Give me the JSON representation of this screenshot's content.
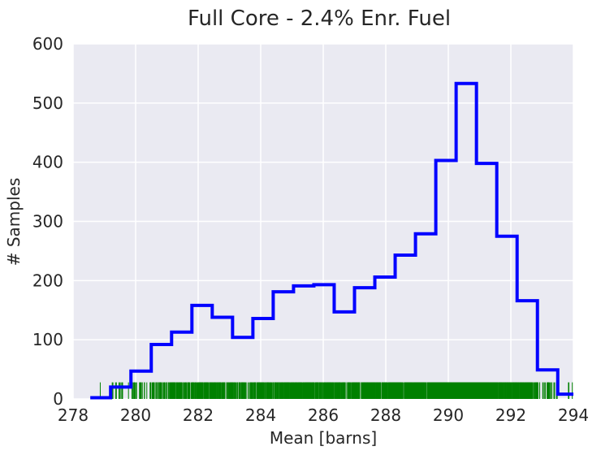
{
  "chart_data": {
    "type": "histogram",
    "title": "Full Core - 2.4% Enr. Fuel",
    "xlabel": "Mean [barns]",
    "ylabel": "# Samples",
    "xlim": [
      278,
      294
    ],
    "ylim": [
      0,
      600
    ],
    "x_ticks": [
      278,
      280,
      282,
      284,
      286,
      288,
      290,
      292,
      294
    ],
    "y_ticks": [
      0,
      100,
      200,
      300,
      400,
      500,
      600
    ],
    "grid": true,
    "background_color": "#eaeaf2",
    "grid_color": "#ffffff",
    "histogram": {
      "color": "#0000ff",
      "bin_edges": [
        278.55,
        279.2,
        279.85,
        280.5,
        281.15,
        281.8,
        282.45,
        283.1,
        283.75,
        284.4,
        285.05,
        285.7,
        286.35,
        287.0,
        287.65,
        288.3,
        288.95,
        289.6,
        290.25,
        290.9,
        291.55,
        292.2,
        292.85,
        293.5,
        294.15
      ],
      "counts": [
        2,
        20,
        47,
        92,
        113,
        158,
        138,
        104,
        136,
        181,
        191,
        193,
        147,
        188,
        206,
        243,
        279,
        403,
        533,
        398,
        275,
        166,
        49,
        8
      ]
    },
    "rug": {
      "color": "#008000",
      "height_value": 28,
      "min": 278.55,
      "max": 294.15,
      "description_values_in_bins": "one tick per sample, sampled by histogram counts"
    }
  }
}
